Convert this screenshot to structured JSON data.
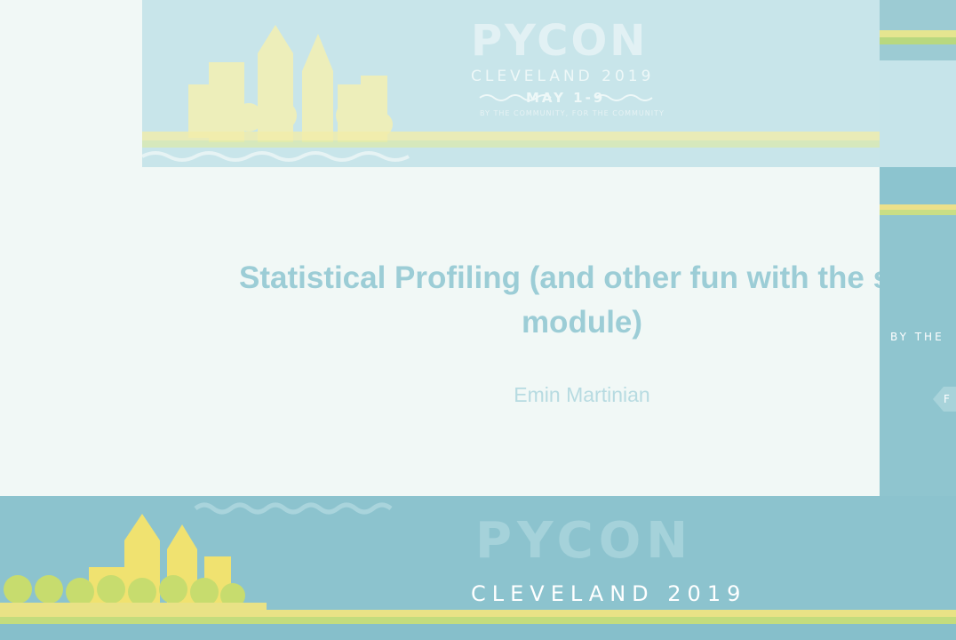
{
  "slide": {
    "banner": {
      "logo_text": "PYCON",
      "city_text": "CLEVELAND 2019",
      "date_text": "MAY 1-9",
      "tagline": "BY THE COMMUNITY, FOR THE COMMUNITY"
    },
    "title": "Statistical Profiling (and other fun with the sys module)",
    "author": "Emin Martinian"
  },
  "side_panel": {
    "by_text": "BY THE",
    "f_text": "F"
  },
  "bottom_banner": {
    "logo_text": "PYCON",
    "city_text": "CLEVELAND 2019"
  },
  "colors": {
    "teal": "#8cc4cf",
    "slide_bg": "#f1f8f6",
    "title": "#9ccdd6",
    "yellow": "#f3e68a",
    "green": "#c3dc7d"
  }
}
